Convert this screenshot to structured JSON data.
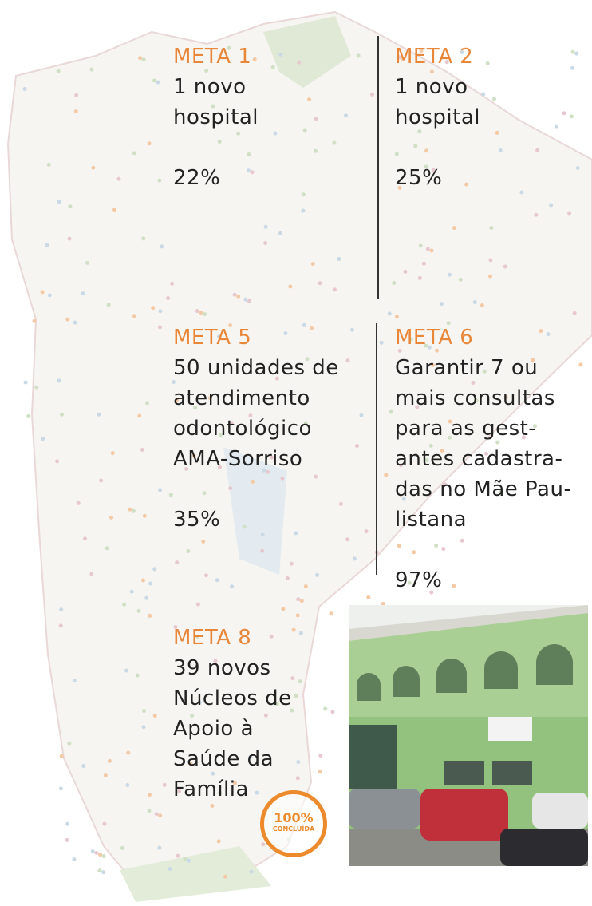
{
  "metas": [
    {
      "title": "META 1",
      "lines": [
        "1 novo",
        "hospital"
      ],
      "percent": "22%"
    },
    {
      "title": "META 2",
      "lines": [
        "1 novo",
        "hospital"
      ],
      "percent": "25%"
    },
    {
      "title": "META 5",
      "lines": [
        "50 unidades de",
        "atendimento",
        "odontológico",
        "AMA-Sorriso"
      ],
      "percent": "35%"
    },
    {
      "title": "META 6",
      "lines": [
        "Garantir 7 ou",
        "mais consultas",
        "para as gest-",
        "antes cadastra-",
        "das no Mãe Pau-",
        "listana"
      ],
      "percent": "97%"
    },
    {
      "title": "META 8",
      "lines": [
        "39 novos",
        "Núcleos de",
        "Apoio à",
        "Saúde da",
        "Família"
      ]
    }
  ],
  "badge": {
    "value": "100%",
    "label": "CONCLUÍDA"
  }
}
